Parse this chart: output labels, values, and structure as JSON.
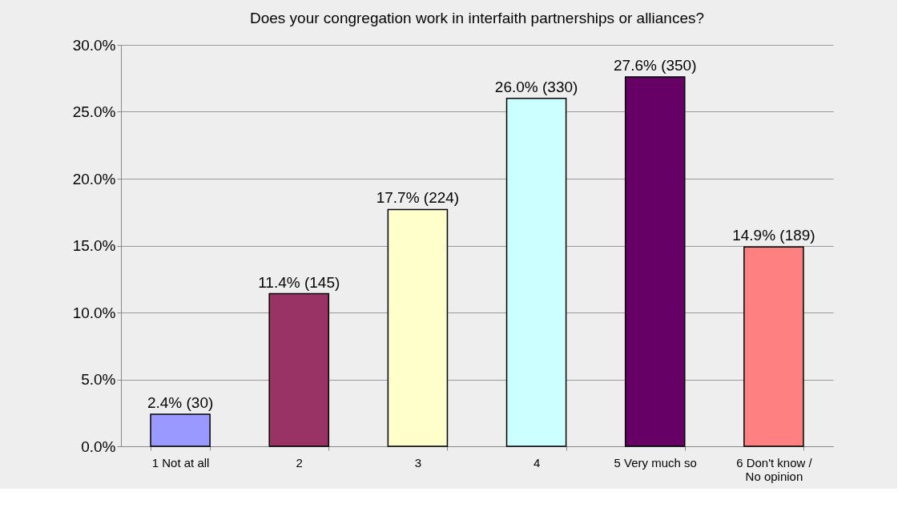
{
  "chart_data": {
    "type": "bar",
    "title": "Does your congregation work in interfaith partnerships or alliances?",
    "categories": [
      "1 Not at all",
      "2",
      "3",
      "4",
      "5 Very much so",
      "6 Don't know /\nNo opinion"
    ],
    "values": [
      2.4,
      11.4,
      17.7,
      26.0,
      27.6,
      14.9
    ],
    "colors": [
      "#9999ff",
      "#993366",
      "#ffffcc",
      "#ccffff",
      "#660066",
      "#ff8080"
    ],
    "value_labels": [
      "2.4% (30)",
      "11.4% (145)",
      "17.7% (224)",
      "26.0% (330)",
      "27.6% (350)",
      "14.9% (189)"
    ],
    "ylim": [
      0,
      30
    ],
    "yticks": [
      {
        "value": 0,
        "label": "0.0%"
      },
      {
        "value": 5,
        "label": "5.0%"
      },
      {
        "value": 10,
        "label": "10.0%"
      },
      {
        "value": 15,
        "label": "15.0%"
      },
      {
        "value": 20,
        "label": "20.0%"
      },
      {
        "value": 25,
        "label": "25.0%"
      },
      {
        "value": 30,
        "label": "30.0%"
      }
    ],
    "grid": "y"
  }
}
